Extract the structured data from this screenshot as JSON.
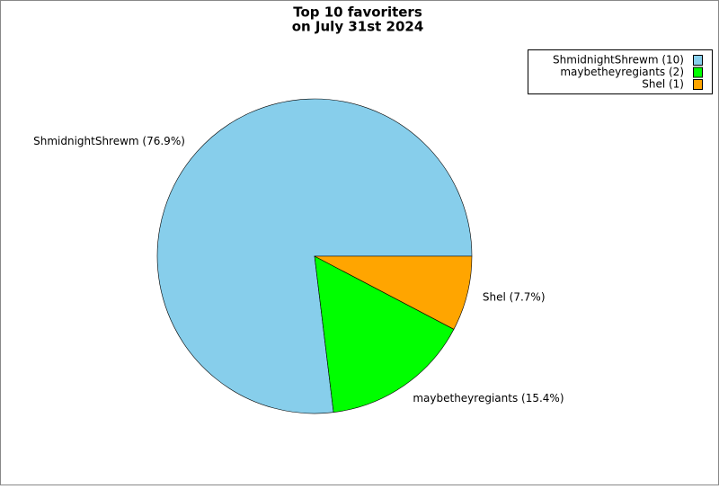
{
  "chart_data": {
    "type": "pie",
    "title": "Top 10 favoriters",
    "subtitle": "on July 31st 2024",
    "categories": [
      "ShmidnightShrewm",
      "maybetheyregiants",
      "Shel"
    ],
    "values": [
      10,
      2,
      1
    ],
    "value_labels": [
      "ShmidnightShrewm (10)",
      "maybetheyregiants (2)",
      "Shel (1)"
    ],
    "percent_values": [
      76.9,
      15.4,
      7.7
    ],
    "percent_labels": [
      "ShmidnightShrewm (76.9%)",
      "maybetheyregiants (15.4%)",
      "Shel (7.7%)"
    ],
    "colors": [
      "#87ceeb",
      "#00ff00",
      "#ffa500"
    ],
    "legend": "upper right"
  }
}
